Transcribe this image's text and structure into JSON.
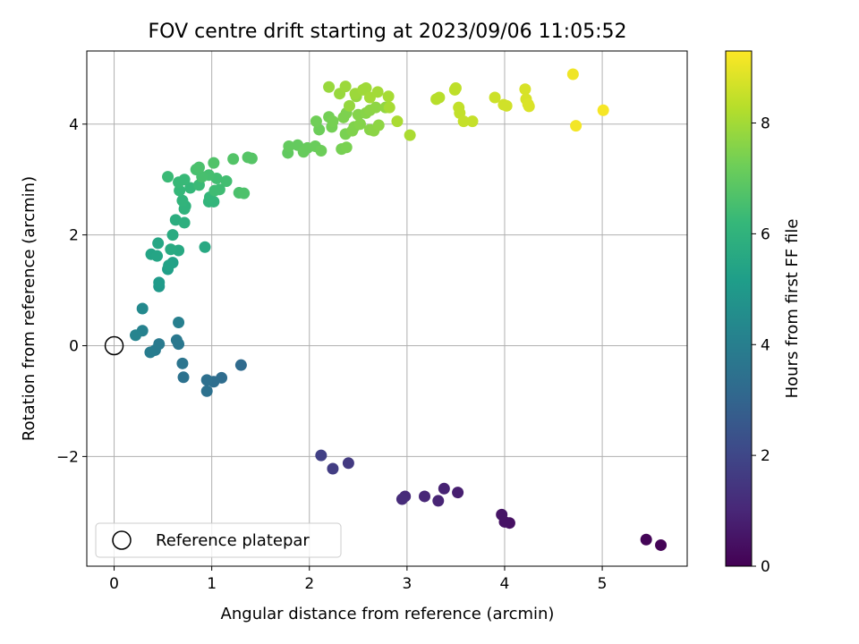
{
  "chart_data": {
    "type": "scatter",
    "title": "FOV centre drift starting at 2023/09/06 11:05:52",
    "xlabel": "Angular distance from reference (arcmin)",
    "ylabel": "Rotation from reference (arcmin)",
    "xlim": [
      -0.28,
      5.87
    ],
    "ylim": [
      -3.98,
      5.32
    ],
    "xticks": [
      0,
      1,
      2,
      3,
      4,
      5
    ],
    "yticks": [
      -2,
      0,
      2,
      4
    ],
    "grid": true,
    "legend": {
      "placement": "lower-left",
      "entries": [
        "Reference platepar"
      ]
    },
    "reference_point": {
      "x": 0,
      "y": 0
    },
    "colorbar": {
      "label": "Hours from first FF file",
      "colormap": "viridis",
      "range": [
        0,
        9.3
      ],
      "ticks": [
        0,
        2,
        4,
        6,
        8
      ]
    },
    "colormap_stops": [
      "#440154",
      "#482878",
      "#3e4989",
      "#31688e",
      "#26828e",
      "#1f9e89",
      "#35b779",
      "#6ece58",
      "#b5de2b",
      "#fde725"
    ],
    "points": [
      [
        5.6,
        -3.6,
        0.05
      ],
      [
        5.45,
        -3.5,
        0.1
      ],
      [
        4.05,
        -3.2,
        0.4
      ],
      [
        4.0,
        -3.18,
        0.45
      ],
      [
        3.97,
        -3.05,
        0.5
      ],
      [
        3.52,
        -2.65,
        0.8
      ],
      [
        3.38,
        -2.58,
        0.9
      ],
      [
        3.32,
        -2.8,
        0.95
      ],
      [
        3.18,
        -2.72,
        1.0
      ],
      [
        2.98,
        -2.72,
        1.1
      ],
      [
        2.95,
        -2.77,
        1.15
      ],
      [
        2.4,
        -2.12,
        1.6
      ],
      [
        2.24,
        -2.22,
        1.7
      ],
      [
        2.12,
        -1.98,
        1.8
      ],
      [
        1.3,
        -0.35,
        3.2
      ],
      [
        1.1,
        -0.58,
        3.3
      ],
      [
        1.02,
        -0.65,
        3.35
      ],
      [
        0.95,
        -0.62,
        3.4
      ],
      [
        0.95,
        -0.82,
        3.45
      ],
      [
        0.71,
        -0.57,
        3.5
      ],
      [
        0.7,
        -0.32,
        3.6
      ],
      [
        0.66,
        0.03,
        3.7
      ],
      [
        0.64,
        0.1,
        3.75
      ],
      [
        0.46,
        0.03,
        3.8
      ],
      [
        0.42,
        -0.08,
        3.85
      ],
      [
        0.37,
        -0.12,
        3.9
      ],
      [
        0.66,
        0.42,
        4.0
      ],
      [
        0.29,
        0.27,
        4.1
      ],
      [
        0.22,
        0.19,
        4.2
      ],
      [
        0.29,
        0.67,
        4.4
      ],
      [
        0.46,
        1.07,
        5.0
      ],
      [
        0.46,
        1.14,
        5.05
      ],
      [
        0.55,
        1.38,
        5.2
      ],
      [
        0.6,
        1.5,
        5.3
      ],
      [
        0.56,
        1.45,
        5.35
      ],
      [
        0.38,
        1.65,
        5.4
      ],
      [
        0.44,
        1.62,
        5.45
      ],
      [
        0.45,
        1.85,
        5.5
      ],
      [
        0.93,
        1.78,
        5.6
      ],
      [
        0.66,
        1.72,
        5.6
      ],
      [
        0.58,
        1.74,
        5.65
      ],
      [
        0.6,
        2.0,
        5.7
      ],
      [
        0.63,
        2.27,
        5.8
      ],
      [
        0.72,
        2.22,
        5.85
      ],
      [
        0.72,
        2.47,
        6.0
      ],
      [
        0.73,
        2.52,
        6.0
      ],
      [
        0.7,
        2.62,
        6.05
      ],
      [
        0.97,
        2.6,
        6.1
      ],
      [
        1.02,
        2.6,
        6.1
      ],
      [
        0.98,
        2.68,
        6.15
      ],
      [
        0.67,
        2.8,
        6.2
      ],
      [
        0.78,
        2.85,
        6.2
      ],
      [
        0.66,
        2.95,
        6.25
      ],
      [
        0.72,
        3.0,
        6.25
      ],
      [
        0.55,
        3.05,
        6.3
      ],
      [
        0.87,
        2.9,
        6.3
      ],
      [
        1.03,
        2.8,
        6.4
      ],
      [
        1.08,
        2.82,
        6.4
      ],
      [
        1.15,
        2.97,
        6.45
      ],
      [
        1.05,
        3.02,
        6.45
      ],
      [
        0.97,
        3.08,
        6.5
      ],
      [
        0.86,
        3.2,
        6.5
      ],
      [
        0.84,
        3.18,
        6.55
      ],
      [
        0.9,
        3.05,
        6.55
      ],
      [
        0.87,
        3.22,
        6.6
      ],
      [
        1.28,
        2.76,
        6.6
      ],
      [
        1.33,
        2.75,
        6.65
      ],
      [
        1.02,
        3.3,
        6.7
      ],
      [
        1.22,
        3.37,
        6.75
      ],
      [
        1.37,
        3.4,
        6.8
      ],
      [
        1.41,
        3.38,
        6.8
      ],
      [
        1.78,
        3.48,
        7.0
      ],
      [
        1.79,
        3.6,
        7.05
      ],
      [
        1.88,
        3.62,
        7.05
      ],
      [
        1.94,
        3.5,
        7.1
      ],
      [
        1.98,
        3.57,
        7.1
      ],
      [
        2.06,
        3.6,
        7.15
      ],
      [
        2.12,
        3.52,
        7.2
      ],
      [
        2.1,
        3.9,
        7.2
      ],
      [
        2.07,
        4.05,
        7.25
      ],
      [
        2.23,
        3.95,
        7.3
      ],
      [
        2.2,
        4.13,
        7.3
      ],
      [
        2.24,
        4.05,
        7.35
      ],
      [
        2.33,
        3.55,
        7.35
      ],
      [
        2.38,
        3.58,
        7.4
      ],
      [
        2.37,
        3.82,
        7.4
      ],
      [
        2.35,
        4.12,
        7.45
      ],
      [
        2.38,
        4.2,
        7.45
      ],
      [
        2.44,
        3.88,
        7.5
      ],
      [
        2.46,
        3.95,
        7.5
      ],
      [
        2.52,
        4.0,
        7.55
      ],
      [
        2.5,
        4.17,
        7.55
      ],
      [
        2.58,
        4.2,
        7.6
      ],
      [
        2.62,
        3.9,
        7.6
      ],
      [
        2.66,
        3.88,
        7.65
      ],
      [
        2.62,
        4.25,
        7.65
      ],
      [
        2.71,
        3.98,
        7.7
      ],
      [
        2.68,
        4.3,
        7.7
      ],
      [
        2.78,
        4.3,
        7.75
      ],
      [
        2.41,
        4.33,
        7.8
      ],
      [
        2.48,
        4.5,
        7.8
      ],
      [
        2.31,
        4.55,
        7.85
      ],
      [
        2.2,
        4.67,
        7.85
      ],
      [
        2.37,
        4.68,
        7.9
      ],
      [
        2.47,
        4.55,
        7.9
      ],
      [
        2.55,
        4.62,
        7.95
      ],
      [
        2.58,
        4.65,
        7.95
      ],
      [
        2.62,
        4.48,
        8.0
      ],
      [
        2.7,
        4.58,
        8.0
      ],
      [
        2.81,
        4.5,
        8.05
      ],
      [
        2.82,
        4.3,
        8.05
      ],
      [
        2.9,
        4.05,
        8.1
      ],
      [
        3.03,
        3.8,
        8.1
      ],
      [
        3.3,
        4.45,
        8.3
      ],
      [
        3.33,
        4.48,
        8.3
      ],
      [
        3.49,
        4.62,
        8.4
      ],
      [
        3.5,
        4.65,
        8.4
      ],
      [
        3.53,
        4.3,
        8.45
      ],
      [
        3.54,
        4.2,
        8.45
      ],
      [
        3.58,
        4.05,
        8.5
      ],
      [
        3.67,
        4.05,
        8.5
      ],
      [
        3.9,
        4.48,
        8.6
      ],
      [
        3.99,
        4.35,
        8.65
      ],
      [
        4.02,
        4.33,
        8.65
      ],
      [
        4.21,
        4.63,
        8.75
      ],
      [
        4.22,
        4.45,
        8.75
      ],
      [
        4.24,
        4.36,
        8.8
      ],
      [
        4.25,
        4.32,
        8.8
      ],
      [
        4.7,
        4.9,
        9.1
      ],
      [
        4.73,
        3.97,
        9.15
      ],
      [
        5.01,
        4.25,
        9.2
      ]
    ]
  }
}
